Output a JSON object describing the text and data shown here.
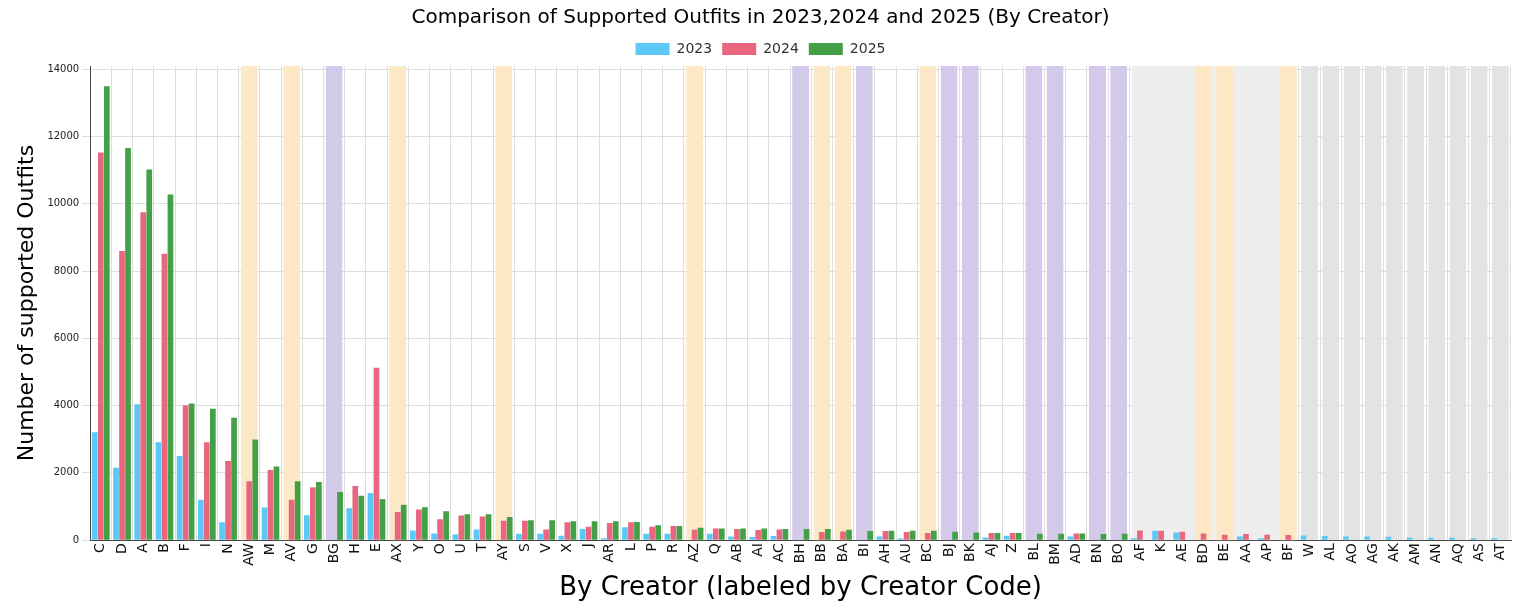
{
  "chart_data": {
    "type": "bar",
    "title": "Comparison of Supported Outfits in 2023,2024 and 2025 (By Creator)",
    "xlabel": "By Creator (labeled by Creator Code)",
    "ylabel": "Number of supported Outfits",
    "categories": [
      "C",
      "D",
      "A",
      "B",
      "F",
      "I",
      "N",
      "AW",
      "M",
      "AV",
      "G",
      "BG",
      "H",
      "E",
      "AX",
      "Y",
      "O",
      "U",
      "T",
      "AY",
      "S",
      "V",
      "X",
      "J",
      "AR",
      "L",
      "P",
      "R",
      "AZ",
      "Q",
      "AB",
      "AI",
      "AC",
      "BH",
      "BB",
      "BA",
      "BI",
      "AH",
      "AU",
      "BC",
      "BJ",
      "BK",
      "AJ",
      "Z",
      "BL",
      "BM",
      "AD",
      "BN",
      "BO",
      "AF",
      "K",
      "AE",
      "BD",
      "BE",
      "AA",
      "AP",
      "BF",
      "W",
      "AL",
      "AO",
      "AG",
      "AK",
      "AM",
      "AN",
      "AQ",
      "AS",
      "AT"
    ],
    "series": [
      {
        "name": "2023",
        "color": "#5bc8f5",
        "values": [
          3210,
          2150,
          4040,
          2910,
          2500,
          1200,
          530,
          null,
          970,
          null,
          740,
          null,
          950,
          1400,
          null,
          290,
          200,
          170,
          320,
          null,
          190,
          190,
          130,
          330,
          60,
          380,
          190,
          190,
          null,
          190,
          110,
          90,
          120,
          null,
          null,
          null,
          null,
          110,
          50,
          null,
          null,
          null,
          80,
          130,
          null,
          null,
          110,
          null,
          null,
          60,
          280,
          230,
          null,
          null,
          110,
          60,
          null,
          140,
          120,
          110,
          110,
          100,
          70,
          70,
          70,
          60,
          60
        ]
      },
      {
        "name": "2024",
        "color": "#e8677f",
        "values": [
          11530,
          8600,
          9750,
          8520,
          4010,
          2910,
          2350,
          1750,
          2090,
          1200,
          1570,
          null,
          1610,
          5130,
          840,
          910,
          620,
          730,
          700,
          580,
          580,
          320,
          530,
          400,
          510,
          530,
          400,
          420,
          310,
          350,
          330,
          300,
          320,
          null,
          240,
          260,
          null,
          270,
          240,
          210,
          null,
          null,
          210,
          210,
          null,
          null,
          200,
          null,
          null,
          290,
          280,
          250,
          200,
          160,
          180,
          160,
          150,
          null,
          null,
          null,
          null,
          null,
          null,
          null,
          null,
          null,
          null
        ]
      },
      {
        "name": "2025",
        "color": "#43a047",
        "values": [
          13500,
          11660,
          11020,
          10280,
          4060,
          3910,
          3640,
          2990,
          2190,
          1750,
          1730,
          1430,
          1320,
          1220,
          1050,
          980,
          860,
          770,
          770,
          690,
          590,
          590,
          560,
          560,
          560,
          540,
          440,
          420,
          370,
          350,
          350,
          350,
          330,
          330,
          330,
          310,
          270,
          280,
          280,
          280,
          250,
          230,
          210,
          210,
          190,
          190,
          200,
          180,
          190,
          null,
          null,
          null,
          null,
          null,
          null,
          null,
          null,
          null,
          null,
          null,
          null,
          null,
          null,
          null,
          null,
          null,
          null
        ]
      }
    ],
    "ylim": [
      0,
      14100
    ],
    "yticks": [
      0,
      2000,
      4000,
      6000,
      8000,
      10000,
      12000,
      14000
    ],
    "grid": true,
    "legend": "top",
    "bands": [
      {
        "axis": "x",
        "from": "AF",
        "to": "BF",
        "color": "#eeeeee"
      },
      {
        "axis": "x",
        "from": "AW",
        "to": "AW",
        "color": "#fde8c6"
      },
      {
        "axis": "x",
        "from": "AV",
        "to": "AV",
        "color": "#fde8c6"
      },
      {
        "axis": "x",
        "from": "AX",
        "to": "AX",
        "color": "#fde8c6"
      },
      {
        "axis": "x",
        "from": "AY",
        "to": "AY",
        "color": "#fde8c6"
      },
      {
        "axis": "x",
        "from": "AZ",
        "to": "AZ",
        "color": "#fde8c6"
      },
      {
        "axis": "x",
        "from": "BB",
        "to": "BB",
        "color": "#fde8c6"
      },
      {
        "axis": "x",
        "from": "BA",
        "to": "BA",
        "color": "#fde8c6"
      },
      {
        "axis": "x",
        "from": "BC",
        "to": "BC",
        "color": "#fde8c6"
      },
      {
        "axis": "x",
        "from": "BD",
        "to": "BD",
        "color": "#fde8c6"
      },
      {
        "axis": "x",
        "from": "BE",
        "to": "BE",
        "color": "#fde8c6"
      },
      {
        "axis": "x",
        "from": "BF",
        "to": "BF",
        "color": "#fde8c6"
      },
      {
        "axis": "x",
        "from": "BG",
        "to": "BG",
        "color": "#d3c9e8"
      },
      {
        "axis": "x",
        "from": "BH",
        "to": "BH",
        "color": "#d3c9e8"
      },
      {
        "axis": "x",
        "from": "BI",
        "to": "BI",
        "color": "#d3c9e8"
      },
      {
        "axis": "x",
        "from": "BJ",
        "to": "BJ",
        "color": "#d3c9e8"
      },
      {
        "axis": "x",
        "from": "BK",
        "to": "BK",
        "color": "#d3c9e8"
      },
      {
        "axis": "x",
        "from": "BL",
        "to": "BL",
        "color": "#d3c9e8"
      },
      {
        "axis": "x",
        "from": "BM",
        "to": "BM",
        "color": "#d3c9e8"
      },
      {
        "axis": "x",
        "from": "BN",
        "to": "BN",
        "color": "#d3c9e8"
      },
      {
        "axis": "x",
        "from": "BO",
        "to": "BO",
        "color": "#d3c9e8"
      },
      {
        "axis": "x",
        "from": "W",
        "to": "W",
        "color": "#e3e3e3"
      },
      {
        "axis": "x",
        "from": "AL",
        "to": "AL",
        "color": "#e3e3e3"
      },
      {
        "axis": "x",
        "from": "AO",
        "to": "AO",
        "color": "#e3e3e3"
      },
      {
        "axis": "x",
        "from": "AG",
        "to": "AG",
        "color": "#e3e3e3"
      },
      {
        "axis": "x",
        "from": "AK",
        "to": "AK",
        "color": "#e3e3e3"
      },
      {
        "axis": "x",
        "from": "AM",
        "to": "AM",
        "color": "#e3e3e3"
      },
      {
        "axis": "x",
        "from": "AN",
        "to": "AN",
        "color": "#e3e3e3"
      },
      {
        "axis": "x",
        "from": "AQ",
        "to": "AQ",
        "color": "#e3e3e3"
      },
      {
        "axis": "x",
        "from": "AS",
        "to": "AS",
        "color": "#e3e3e3"
      },
      {
        "axis": "x",
        "from": "AT",
        "to": "AT",
        "color": "#e3e3e3"
      }
    ]
  }
}
